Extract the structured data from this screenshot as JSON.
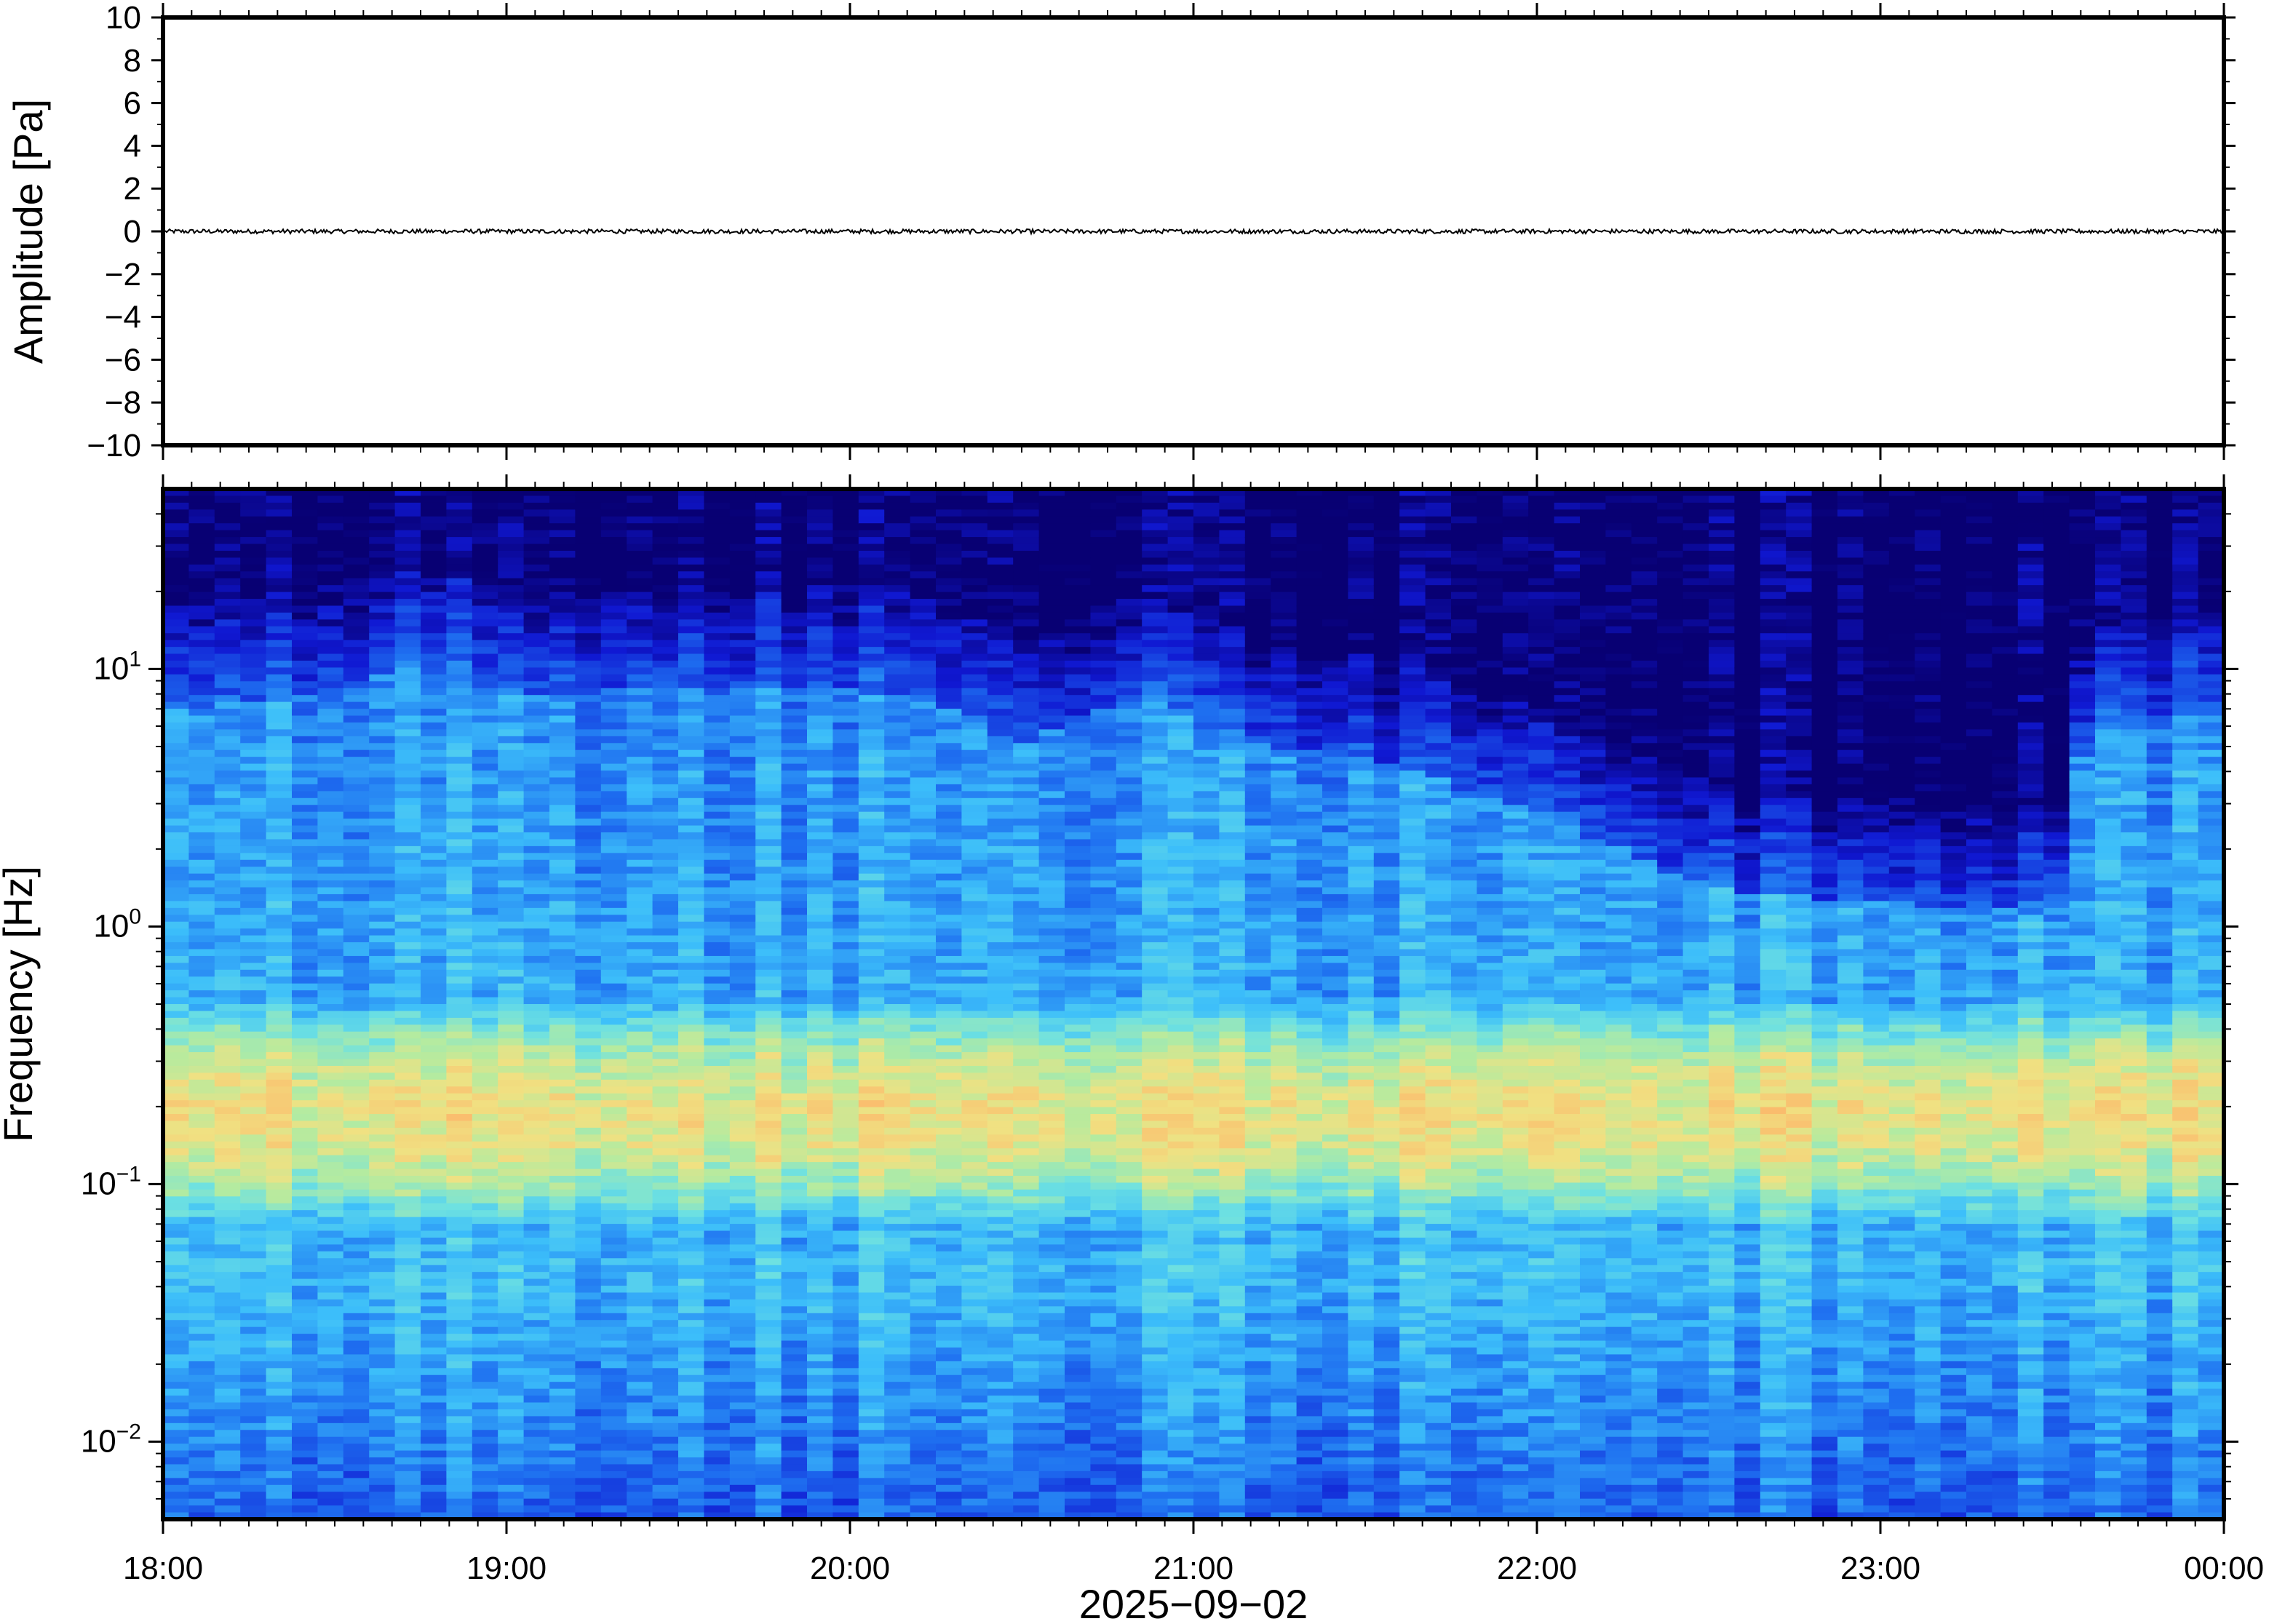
{
  "chart_data": [
    {
      "type": "line",
      "panel": "waveform",
      "ylabel": "Amplitude [Pa]",
      "ylim": [
        -10,
        10
      ],
      "yticks": [
        10,
        8,
        6,
        4,
        2,
        0,
        -2,
        -4,
        -6,
        -8,
        -10
      ],
      "ytick_labels": [
        "10",
        "8",
        "6",
        "4",
        "2",
        "0",
        "−2",
        "−4",
        "−6",
        "−8",
        "−10"
      ],
      "x_range": [
        "2025-09-02T18:00",
        "2025-09-03T00:00"
      ],
      "series": [
        {
          "x": [
            "18:00",
            "24:00"
          ],
          "values": [
            0,
            0
          ],
          "peak_amplitude": 0.1
        }
      ],
      "grid": false
    },
    {
      "type": "heatmap",
      "panel": "spectrogram",
      "ylabel": "Frequency [Hz]",
      "yscale": "log",
      "ylim": [
        0.005,
        50
      ],
      "yticks": [
        0.01,
        0.1,
        1,
        10
      ],
      "ytick_labels": [
        {
          "base": "10",
          "exp": "−2"
        },
        {
          "base": "10",
          "exp": "−1"
        },
        {
          "base": "10",
          "exp": "0"
        },
        {
          "base": "10",
          "exp": "1"
        }
      ],
      "colormap": "jet",
      "colors": {
        "low": "#0b0073",
        "mid": "#45c8f0",
        "high": "#f7c36a"
      },
      "features": {
        "microseism_band_hz": [
          0.12,
          0.3
        ],
        "upper_noise_edge_hz": {
          "18:00": 12,
          "18:30": 15,
          "18:45": 18,
          "19:00": 14,
          "19:30": 15,
          "20:00": 15,
          "20:15": 13,
          "20:30": 9,
          "20:50": 14,
          "21:10": 9,
          "21:30": 8,
          "22:00": 5,
          "22:30": 2.5,
          "23:00": 2.2,
          "23:30": 2.0,
          "23:36": 10,
          "24:00": 12
        }
      },
      "grid": false
    }
  ],
  "x_axis": {
    "tick_labels": [
      "18:00",
      "19:00",
      "20:00",
      "21:00",
      "22:00",
      "23:00",
      "00:00"
    ],
    "xlabel": "2025−09−02"
  }
}
